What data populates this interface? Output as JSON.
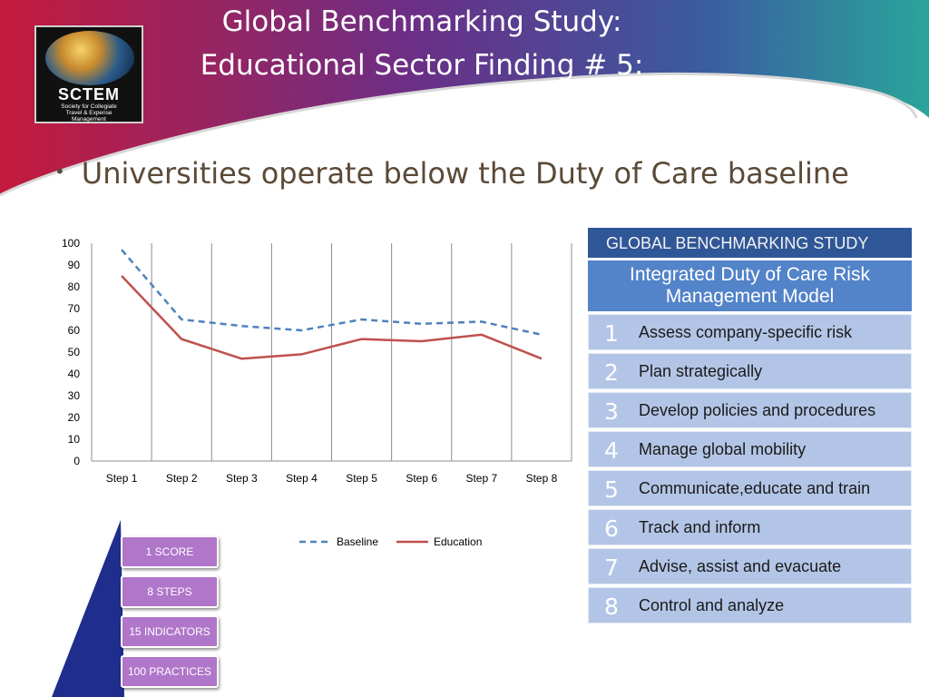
{
  "header": {
    "title_line1": "Global Benchmarking Study:",
    "title_line2": "Educational Sector Finding # 5:",
    "logo": {
      "brand": "SCTEM",
      "tagline": [
        "Society for Collegiate",
        "Travel & Expense",
        "Management"
      ]
    }
  },
  "bullet": "Universities operate below the Duty of Care baseline",
  "chart_data": {
    "type": "line",
    "title": "",
    "xlabel": "",
    "ylabel": "",
    "categories": [
      "Step 1",
      "Step 2",
      "Step 3",
      "Step 4",
      "Step 5",
      "Step 6",
      "Step 7",
      "Step 8"
    ],
    "ylim": [
      0,
      100
    ],
    "yticks": [
      "0",
      "10",
      "20",
      "30",
      "40",
      "50",
      "60",
      "70",
      "80",
      "90",
      "100"
    ],
    "series": [
      {
        "name": "Baseline",
        "values": [
          97,
          65,
          62,
          60,
          65,
          63,
          64,
          58
        ],
        "color": "#4f81bd",
        "style": "dashed"
      },
      {
        "name": "Education",
        "values": [
          85,
          56,
          47,
          49,
          56,
          55,
          58,
          47
        ],
        "color": "#c0504d",
        "style": "solid"
      }
    ],
    "grid": "vertical",
    "legend_position": "bottom"
  },
  "side_panel": {
    "header": "GLOBAL BENCHMARKING STUDY",
    "model_title_line1": "Integrated Duty of Care Risk",
    "model_title_line2": "Management Model",
    "steps": [
      {
        "num": "1",
        "label": "Assess company-specific risk"
      },
      {
        "num": "2",
        "label": "Plan strategically"
      },
      {
        "num": "3",
        "label": "Develop policies and procedures"
      },
      {
        "num": "4",
        "label": "Manage global mobility"
      },
      {
        "num": "5",
        "label": "Communicate,educate and train"
      },
      {
        "num": "6",
        "label": "Track and inform"
      },
      {
        "num": "7",
        "label": "Advise, assist and evacuate"
      },
      {
        "num": "8",
        "label": "Control and analyze"
      }
    ]
  },
  "pyramid": {
    "items": [
      "1 SCORE",
      "8 STEPS",
      "15 INDICATORS",
      "100 PRACTICES"
    ],
    "colors": {
      "triangle": "#1f2e8c",
      "box": "#b076c9"
    }
  }
}
